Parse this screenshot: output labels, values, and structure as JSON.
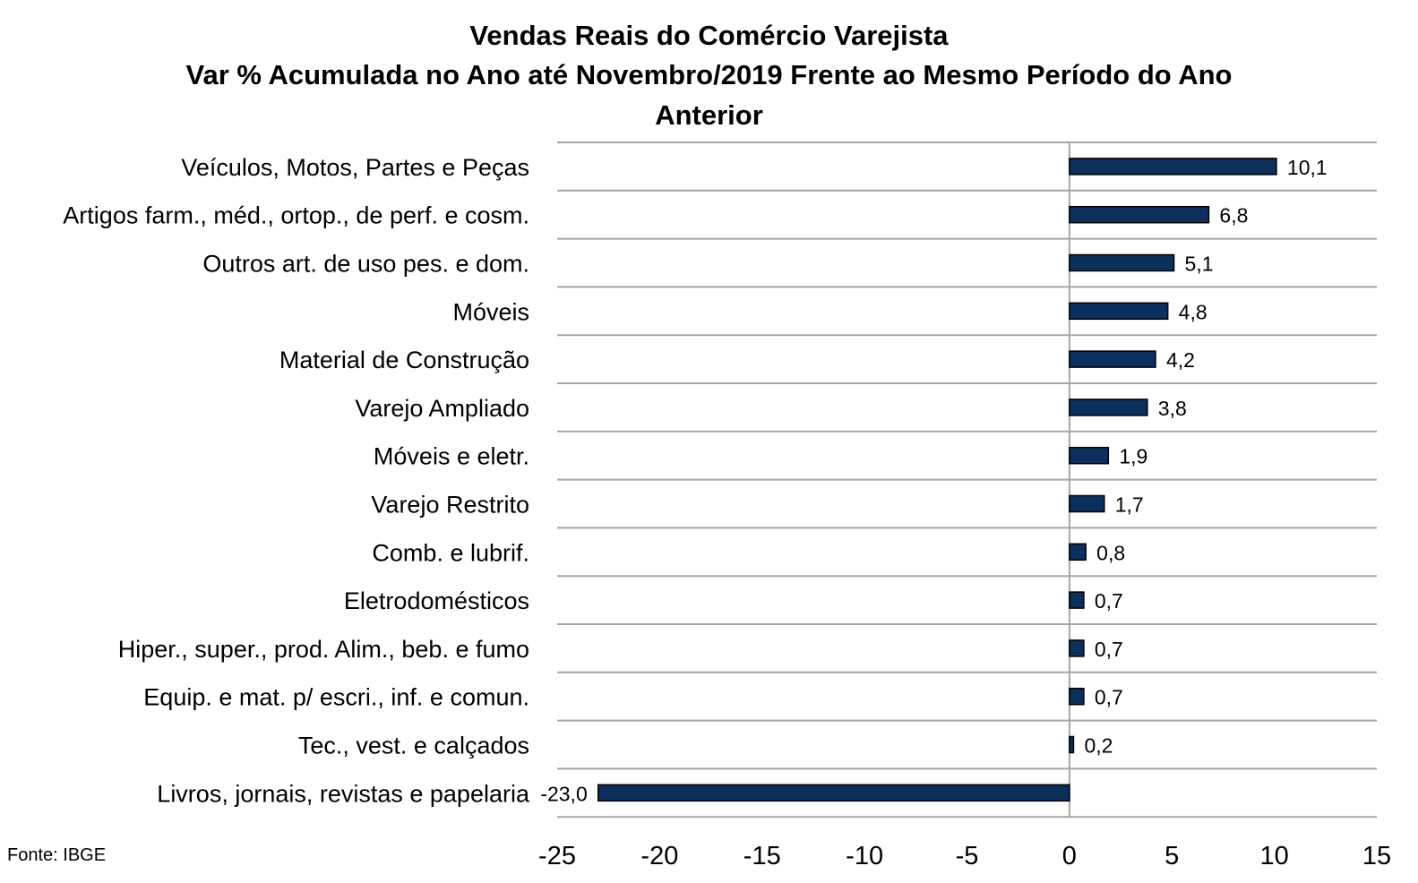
{
  "title_lines": [
    "Vendas Reais do Comércio Varejista",
    "Var % Acumulada no Ano até Novembro/2019 Frente ao Mesmo Período do Ano",
    "Anterior"
  ],
  "source": "Fonte: IBGE",
  "chart_data": {
    "type": "bar",
    "orientation": "horizontal",
    "categories": [
      "Veículos, Motos, Partes e Peças",
      "Artigos farm., méd., ortop., de perf. e cosm.",
      "Outros art. de uso pes. e dom.",
      "Móveis",
      "Material de Construção",
      "Varejo Ampliado",
      "Móveis e eletr.",
      "Varejo Restrito",
      "Comb. e lubrif.",
      "Eletrodomésticos",
      "Hiper., super., prod. Alim., beb. e fumo",
      "Equip. e mat. p/ escri., inf. e comun.",
      "Tec., vest. e calçados",
      "Livros, jornais, revistas e papelaria"
    ],
    "values": [
      10.1,
      6.8,
      5.1,
      4.8,
      4.2,
      3.8,
      1.9,
      1.7,
      0.8,
      0.7,
      0.7,
      0.7,
      0.2,
      -23.0
    ],
    "data_labels": [
      "10,1",
      "6,8",
      "5,1",
      "4,8",
      "4,2",
      "3,8",
      "1,9",
      "1,7",
      "0,8",
      "0,7",
      "0,7",
      "0,7",
      "0,2",
      "-23,0"
    ],
    "xlim": [
      -25,
      15
    ],
    "xticks": [
      -25,
      -20,
      -15,
      -10,
      -5,
      0,
      5,
      10,
      15
    ],
    "xtick_labels": [
      "-25",
      "-20",
      "-15",
      "-10",
      "-5",
      "0",
      "5",
      "10",
      "15"
    ],
    "bar_color": "#0d2f5c",
    "gridlines": "horizontal",
    "legend": "none"
  }
}
